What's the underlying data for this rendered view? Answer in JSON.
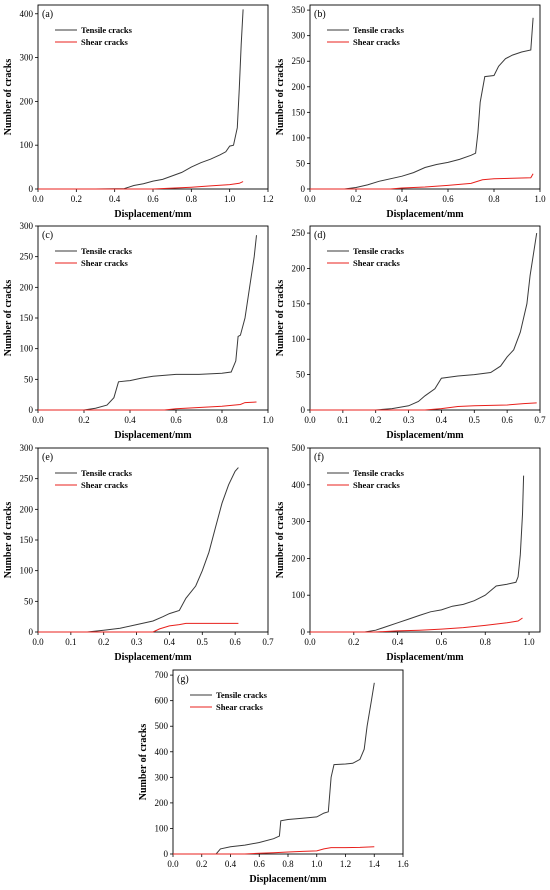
{
  "chart_data": [
    {
      "type": "line",
      "panel_label": "(a)",
      "xlabel": "Displacement/mm",
      "ylabel": "Number of cracks",
      "xlim": [
        0.0,
        1.2
      ],
      "ylim": [
        0,
        420
      ],
      "xticks": [
        "0.0",
        "0.2",
        "0.4",
        "0.6",
        "0.8",
        "1.0",
        "1.2"
      ],
      "yticks": [
        "0",
        "100",
        "200",
        "300",
        "400"
      ],
      "legend_position": "top-left",
      "series": [
        {
          "name": "Tensile cracks",
          "color": "#3a3a3a",
          "points": [
            [
              0.0,
              0
            ],
            [
              0.3,
              0
            ],
            [
              0.45,
              1
            ],
            [
              0.5,
              8
            ],
            [
              0.55,
              12
            ],
            [
              0.6,
              18
            ],
            [
              0.65,
              22
            ],
            [
              0.7,
              30
            ],
            [
              0.75,
              38
            ],
            [
              0.8,
              50
            ],
            [
              0.85,
              60
            ],
            [
              0.9,
              68
            ],
            [
              0.95,
              78
            ],
            [
              0.98,
              85
            ],
            [
              1.0,
              98
            ],
            [
              1.02,
              100
            ],
            [
              1.04,
              140
            ],
            [
              1.05,
              230
            ],
            [
              1.06,
              330
            ],
            [
              1.07,
              410
            ]
          ]
        },
        {
          "name": "Shear cracks",
          "color": "#e8201c",
          "points": [
            [
              0.0,
              0
            ],
            [
              0.6,
              0
            ],
            [
              0.7,
              2
            ],
            [
              0.8,
              4
            ],
            [
              0.9,
              7
            ],
            [
              1.0,
              10
            ],
            [
              1.05,
              13
            ],
            [
              1.07,
              17
            ]
          ]
        }
      ]
    },
    {
      "type": "line",
      "panel_label": "(b)",
      "xlabel": "Displacement/mm",
      "ylabel": "Number of cracks",
      "xlim": [
        0.0,
        1.0
      ],
      "ylim": [
        0,
        360
      ],
      "xticks": [
        "0.0",
        "0.2",
        "0.4",
        "0.6",
        "0.8",
        "1.0"
      ],
      "yticks": [
        "0",
        "50",
        "100",
        "150",
        "200",
        "250",
        "300",
        "350"
      ],
      "legend_position": "top-left",
      "series": [
        {
          "name": "Tensile cracks",
          "color": "#3a3a3a",
          "points": [
            [
              0.0,
              0
            ],
            [
              0.15,
              0
            ],
            [
              0.2,
              3
            ],
            [
              0.25,
              8
            ],
            [
              0.3,
              15
            ],
            [
              0.4,
              25
            ],
            [
              0.45,
              32
            ],
            [
              0.5,
              42
            ],
            [
              0.55,
              48
            ],
            [
              0.6,
              52
            ],
            [
              0.65,
              58
            ],
            [
              0.7,
              66
            ],
            [
              0.72,
              70
            ],
            [
              0.73,
              110
            ],
            [
              0.74,
              170
            ],
            [
              0.76,
              220
            ],
            [
              0.8,
              222
            ],
            [
              0.82,
              240
            ],
            [
              0.85,
              255
            ],
            [
              0.88,
              262
            ],
            [
              0.92,
              268
            ],
            [
              0.96,
              272
            ],
            [
              0.97,
              335
            ]
          ]
        },
        {
          "name": "Shear cracks",
          "color": "#e8201c",
          "points": [
            [
              0.0,
              0
            ],
            [
              0.35,
              0
            ],
            [
              0.4,
              2
            ],
            [
              0.5,
              4
            ],
            [
              0.6,
              7
            ],
            [
              0.7,
              11
            ],
            [
              0.75,
              18
            ],
            [
              0.8,
              20
            ],
            [
              0.96,
              22
            ],
            [
              0.97,
              30
            ]
          ]
        }
      ]
    },
    {
      "type": "line",
      "panel_label": "(c)",
      "xlabel": "Displacement/mm",
      "ylabel": "Number of cracks",
      "xlim": [
        0.0,
        1.0
      ],
      "ylim": [
        0,
        300
      ],
      "xticks": [
        "0.0",
        "0.2",
        "0.4",
        "0.6",
        "0.8",
        "1.0"
      ],
      "yticks": [
        "0",
        "50",
        "100",
        "150",
        "200",
        "250",
        "300"
      ],
      "legend_position": "top-left",
      "series": [
        {
          "name": "Tensile cracks",
          "color": "#3a3a3a",
          "points": [
            [
              0.0,
              0
            ],
            [
              0.2,
              0
            ],
            [
              0.25,
              3
            ],
            [
              0.3,
              8
            ],
            [
              0.33,
              20
            ],
            [
              0.35,
              46
            ],
            [
              0.4,
              48
            ],
            [
              0.45,
              52
            ],
            [
              0.5,
              55
            ],
            [
              0.6,
              58
            ],
            [
              0.7,
              58
            ],
            [
              0.8,
              60
            ],
            [
              0.84,
              62
            ],
            [
              0.86,
              80
            ],
            [
              0.87,
              120
            ],
            [
              0.88,
              122
            ],
            [
              0.9,
              150
            ],
            [
              0.92,
              200
            ],
            [
              0.94,
              250
            ],
            [
              0.95,
              285
            ]
          ]
        },
        {
          "name": "Shear cracks",
          "color": "#e8201c",
          "points": [
            [
              0.0,
              0
            ],
            [
              0.55,
              0
            ],
            [
              0.6,
              2
            ],
            [
              0.7,
              4
            ],
            [
              0.8,
              6
            ],
            [
              0.88,
              9
            ],
            [
              0.9,
              12
            ],
            [
              0.95,
              13
            ]
          ]
        }
      ]
    },
    {
      "type": "line",
      "panel_label": "(d)",
      "xlabel": "Displacement/mm",
      "ylabel": "Number of cracks",
      "xlim": [
        0.0,
        0.7
      ],
      "ylim": [
        0,
        260
      ],
      "xticks": [
        "0.0",
        "0.1",
        "0.2",
        "0.3",
        "0.4",
        "0.5",
        "0.6",
        "0.7"
      ],
      "yticks": [
        "0",
        "50",
        "100",
        "150",
        "200",
        "250"
      ],
      "legend_position": "top-left",
      "series": [
        {
          "name": "Tensile cracks",
          "color": "#3a3a3a",
          "points": [
            [
              0.0,
              0
            ],
            [
              0.2,
              0
            ],
            [
              0.25,
              2
            ],
            [
              0.3,
              6
            ],
            [
              0.33,
              12
            ],
            [
              0.35,
              20
            ],
            [
              0.38,
              30
            ],
            [
              0.4,
              45
            ],
            [
              0.45,
              48
            ],
            [
              0.5,
              50
            ],
            [
              0.55,
              53
            ],
            [
              0.58,
              62
            ],
            [
              0.6,
              75
            ],
            [
              0.62,
              85
            ],
            [
              0.64,
              110
            ],
            [
              0.66,
              150
            ],
            [
              0.67,
              190
            ],
            [
              0.68,
              220
            ],
            [
              0.69,
              250
            ]
          ]
        },
        {
          "name": "Shear cracks",
          "color": "#e8201c",
          "points": [
            [
              0.0,
              0
            ],
            [
              0.35,
              0
            ],
            [
              0.4,
              2
            ],
            [
              0.45,
              5
            ],
            [
              0.5,
              6
            ],
            [
              0.6,
              7
            ],
            [
              0.65,
              9
            ],
            [
              0.69,
              10
            ]
          ]
        }
      ]
    },
    {
      "type": "line",
      "panel_label": "(e)",
      "xlabel": "Displacement/mm",
      "ylabel": "Number of cracks",
      "xlim": [
        0.0,
        0.7
      ],
      "ylim": [
        0,
        300
      ],
      "xticks": [
        "0.0",
        "0.1",
        "0.2",
        "0.3",
        "0.4",
        "0.5",
        "0.6",
        "0.7"
      ],
      "yticks": [
        "0",
        "50",
        "100",
        "150",
        "200",
        "250",
        "300"
      ],
      "legend_position": "top-left",
      "series": [
        {
          "name": "Tensile cracks",
          "color": "#3a3a3a",
          "points": [
            [
              0.0,
              0
            ],
            [
              0.15,
              0
            ],
            [
              0.2,
              3
            ],
            [
              0.25,
              6
            ],
            [
              0.3,
              12
            ],
            [
              0.35,
              18
            ],
            [
              0.38,
              25
            ],
            [
              0.4,
              30
            ],
            [
              0.43,
              35
            ],
            [
              0.45,
              55
            ],
            [
              0.48,
              75
            ],
            [
              0.5,
              100
            ],
            [
              0.52,
              130
            ],
            [
              0.54,
              170
            ],
            [
              0.56,
              210
            ],
            [
              0.58,
              240
            ],
            [
              0.6,
              262
            ],
            [
              0.61,
              268
            ]
          ]
        },
        {
          "name": "Shear cracks",
          "color": "#e8201c",
          "points": [
            [
              0.0,
              0
            ],
            [
              0.35,
              0
            ],
            [
              0.37,
              5
            ],
            [
              0.4,
              10
            ],
            [
              0.43,
              12
            ],
            [
              0.45,
              14
            ],
            [
              0.5,
              14
            ],
            [
              0.61,
              14
            ]
          ]
        }
      ]
    },
    {
      "type": "line",
      "panel_label": "(f)",
      "xlabel": "Displacement/mm",
      "ylabel": "Number of cracks",
      "xlim": [
        0.0,
        1.05
      ],
      "ylim": [
        0,
        500
      ],
      "xticks": [
        "0.0",
        "0.2",
        "0.4",
        "0.6",
        "0.8",
        "1.0"
      ],
      "yticks": [
        "0",
        "100",
        "200",
        "300",
        "400",
        "500"
      ],
      "legend_position": "top-left",
      "series": [
        {
          "name": "Tensile cracks",
          "color": "#3a3a3a",
          "points": [
            [
              0.0,
              0
            ],
            [
              0.25,
              0
            ],
            [
              0.3,
              5
            ],
            [
              0.35,
              15
            ],
            [
              0.4,
              25
            ],
            [
              0.45,
              35
            ],
            [
              0.5,
              45
            ],
            [
              0.55,
              55
            ],
            [
              0.6,
              60
            ],
            [
              0.65,
              70
            ],
            [
              0.7,
              75
            ],
            [
              0.75,
              85
            ],
            [
              0.8,
              100
            ],
            [
              0.85,
              125
            ],
            [
              0.9,
              130
            ],
            [
              0.94,
              135
            ],
            [
              0.95,
              150
            ],
            [
              0.96,
              210
            ],
            [
              0.97,
              320
            ],
            [
              0.975,
              425
            ]
          ]
        },
        {
          "name": "Shear cracks",
          "color": "#e8201c",
          "points": [
            [
              0.0,
              0
            ],
            [
              0.3,
              0
            ],
            [
              0.4,
              3
            ],
            [
              0.5,
              5
            ],
            [
              0.6,
              8
            ],
            [
              0.7,
              12
            ],
            [
              0.8,
              18
            ],
            [
              0.9,
              25
            ],
            [
              0.95,
              30
            ],
            [
              0.97,
              38
            ]
          ]
        }
      ]
    },
    {
      "type": "line",
      "panel_label": "(g)",
      "xlabel": "Displacement/mm",
      "ylabel": "Number of cracks",
      "xlim": [
        0.0,
        1.6
      ],
      "ylim": [
        0,
        720
      ],
      "xticks": [
        "0.0",
        "0.2",
        "0.4",
        "0.6",
        "0.8",
        "1.0",
        "1.2",
        "1.4",
        "1.6"
      ],
      "yticks": [
        "0",
        "100",
        "200",
        "300",
        "400",
        "500",
        "600",
        "700"
      ],
      "legend_position": "top-left",
      "series": [
        {
          "name": "Tensile cracks",
          "color": "#3a3a3a",
          "points": [
            [
              0.0,
              0
            ],
            [
              0.3,
              0
            ],
            [
              0.33,
              20
            ],
            [
              0.4,
              28
            ],
            [
              0.5,
              35
            ],
            [
              0.6,
              45
            ],
            [
              0.7,
              60
            ],
            [
              0.74,
              70
            ],
            [
              0.75,
              130
            ],
            [
              0.8,
              135
            ],
            [
              0.9,
              140
            ],
            [
              1.0,
              145
            ],
            [
              1.05,
              160
            ],
            [
              1.08,
              165
            ],
            [
              1.1,
              300
            ],
            [
              1.12,
              350
            ],
            [
              1.2,
              352
            ],
            [
              1.25,
              355
            ],
            [
              1.3,
              370
            ],
            [
              1.33,
              410
            ],
            [
              1.35,
              500
            ],
            [
              1.38,
              600
            ],
            [
              1.4,
              670
            ]
          ]
        },
        {
          "name": "Shear cracks",
          "color": "#e8201c",
          "points": [
            [
              0.0,
              0
            ],
            [
              0.5,
              0
            ],
            [
              0.6,
              3
            ],
            [
              0.7,
              5
            ],
            [
              0.8,
              8
            ],
            [
              0.9,
              10
            ],
            [
              1.0,
              12
            ],
            [
              1.05,
              20
            ],
            [
              1.1,
              25
            ],
            [
              1.2,
              25
            ],
            [
              1.3,
              26
            ],
            [
              1.4,
              28
            ]
          ]
        }
      ]
    }
  ]
}
